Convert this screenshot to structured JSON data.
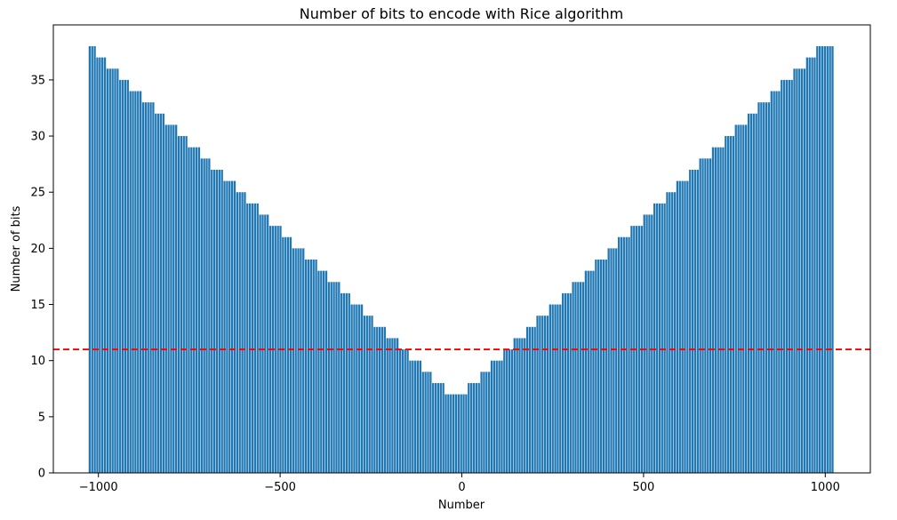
{
  "chart_data": {
    "type": "bar",
    "title": "Number of bits to encode with Rice algorithm",
    "xlabel": "Number",
    "ylabel": "Number of bits",
    "xlim": [
      -1124,
      1124
    ],
    "ylim": [
      0,
      39.9
    ],
    "xticks": [
      -1000,
      -500,
      0,
      500,
      1000
    ],
    "xtick_labels": [
      "−1000",
      "−500",
      "0",
      "500",
      "1000"
    ],
    "yticks": [
      0,
      5,
      10,
      15,
      20,
      25,
      30,
      35
    ],
    "ytick_labels": [
      "0",
      "5",
      "10",
      "15",
      "20",
      "25",
      "30",
      "35"
    ],
    "x_range": [
      -1024,
      1024
    ],
    "bar_width": 7,
    "threshold_line": {
      "y": 11,
      "color": "#ff0000",
      "style": "dashed"
    },
    "bar_color": "#1f77b4",
    "grid": false,
    "bins": [
      {
        "x_start": -1024,
        "x_end": -1008,
        "value": 38
      },
      {
        "x_start": -1008,
        "x_end": -976,
        "value": 37
      },
      {
        "x_start": -976,
        "x_end": -944,
        "value": 36
      },
      {
        "x_start": -944,
        "x_end": -912,
        "value": 35
      },
      {
        "x_start": -912,
        "x_end": -880,
        "value": 34
      },
      {
        "x_start": -880,
        "x_end": -848,
        "value": 33
      },
      {
        "x_start": -848,
        "x_end": -816,
        "value": 32
      },
      {
        "x_start": -816,
        "x_end": -784,
        "value": 31
      },
      {
        "x_start": -784,
        "x_end": -752,
        "value": 30
      },
      {
        "x_start": -752,
        "x_end": -720,
        "value": 29
      },
      {
        "x_start": -720,
        "x_end": -688,
        "value": 28
      },
      {
        "x_start": -688,
        "x_end": -656,
        "value": 27
      },
      {
        "x_start": -656,
        "x_end": -624,
        "value": 26
      },
      {
        "x_start": -624,
        "x_end": -592,
        "value": 25
      },
      {
        "x_start": -592,
        "x_end": -560,
        "value": 24
      },
      {
        "x_start": -560,
        "x_end": -528,
        "value": 23
      },
      {
        "x_start": -528,
        "x_end": -496,
        "value": 22
      },
      {
        "x_start": -496,
        "x_end": -464,
        "value": 21
      },
      {
        "x_start": -464,
        "x_end": -432,
        "value": 20
      },
      {
        "x_start": -432,
        "x_end": -400,
        "value": 19
      },
      {
        "x_start": -400,
        "x_end": -368,
        "value": 18
      },
      {
        "x_start": -368,
        "x_end": -336,
        "value": 17
      },
      {
        "x_start": -336,
        "x_end": -304,
        "value": 16
      },
      {
        "x_start": -304,
        "x_end": -272,
        "value": 15
      },
      {
        "x_start": -272,
        "x_end": -240,
        "value": 14
      },
      {
        "x_start": -240,
        "x_end": -208,
        "value": 13
      },
      {
        "x_start": -208,
        "x_end": -176,
        "value": 12
      },
      {
        "x_start": -176,
        "x_end": -144,
        "value": 11
      },
      {
        "x_start": -144,
        "x_end": -112,
        "value": 10
      },
      {
        "x_start": -112,
        "x_end": -80,
        "value": 9
      },
      {
        "x_start": -80,
        "x_end": -48,
        "value": 8
      },
      {
        "x_start": -48,
        "x_end": 16,
        "value": 7
      },
      {
        "x_start": 16,
        "x_end": 48,
        "value": 8
      },
      {
        "x_start": 48,
        "x_end": 80,
        "value": 9
      },
      {
        "x_start": 80,
        "x_end": 112,
        "value": 10
      },
      {
        "x_start": 112,
        "x_end": 144,
        "value": 11
      },
      {
        "x_start": 144,
        "x_end": 176,
        "value": 12
      },
      {
        "x_start": 176,
        "x_end": 208,
        "value": 13
      },
      {
        "x_start": 208,
        "x_end": 240,
        "value": 14
      },
      {
        "x_start": 240,
        "x_end": 272,
        "value": 15
      },
      {
        "x_start": 272,
        "x_end": 304,
        "value": 16
      },
      {
        "x_start": 304,
        "x_end": 336,
        "value": 17
      },
      {
        "x_start": 336,
        "x_end": 368,
        "value": 18
      },
      {
        "x_start": 368,
        "x_end": 400,
        "value": 19
      },
      {
        "x_start": 400,
        "x_end": 432,
        "value": 20
      },
      {
        "x_start": 432,
        "x_end": 464,
        "value": 21
      },
      {
        "x_start": 464,
        "x_end": 496,
        "value": 22
      },
      {
        "x_start": 496,
        "x_end": 528,
        "value": 23
      },
      {
        "x_start": 528,
        "x_end": 560,
        "value": 24
      },
      {
        "x_start": 560,
        "x_end": 592,
        "value": 25
      },
      {
        "x_start": 592,
        "x_end": 624,
        "value": 26
      },
      {
        "x_start": 624,
        "x_end": 656,
        "value": 27
      },
      {
        "x_start": 656,
        "x_end": 688,
        "value": 28
      },
      {
        "x_start": 688,
        "x_end": 720,
        "value": 29
      },
      {
        "x_start": 720,
        "x_end": 752,
        "value": 30
      },
      {
        "x_start": 752,
        "x_end": 784,
        "value": 31
      },
      {
        "x_start": 784,
        "x_end": 816,
        "value": 32
      },
      {
        "x_start": 816,
        "x_end": 848,
        "value": 33
      },
      {
        "x_start": 848,
        "x_end": 880,
        "value": 34
      },
      {
        "x_start": 880,
        "x_end": 912,
        "value": 35
      },
      {
        "x_start": 912,
        "x_end": 944,
        "value": 36
      },
      {
        "x_start": 944,
        "x_end": 976,
        "value": 37
      },
      {
        "x_start": 976,
        "x_end": 1024,
        "value": 38
      }
    ]
  }
}
